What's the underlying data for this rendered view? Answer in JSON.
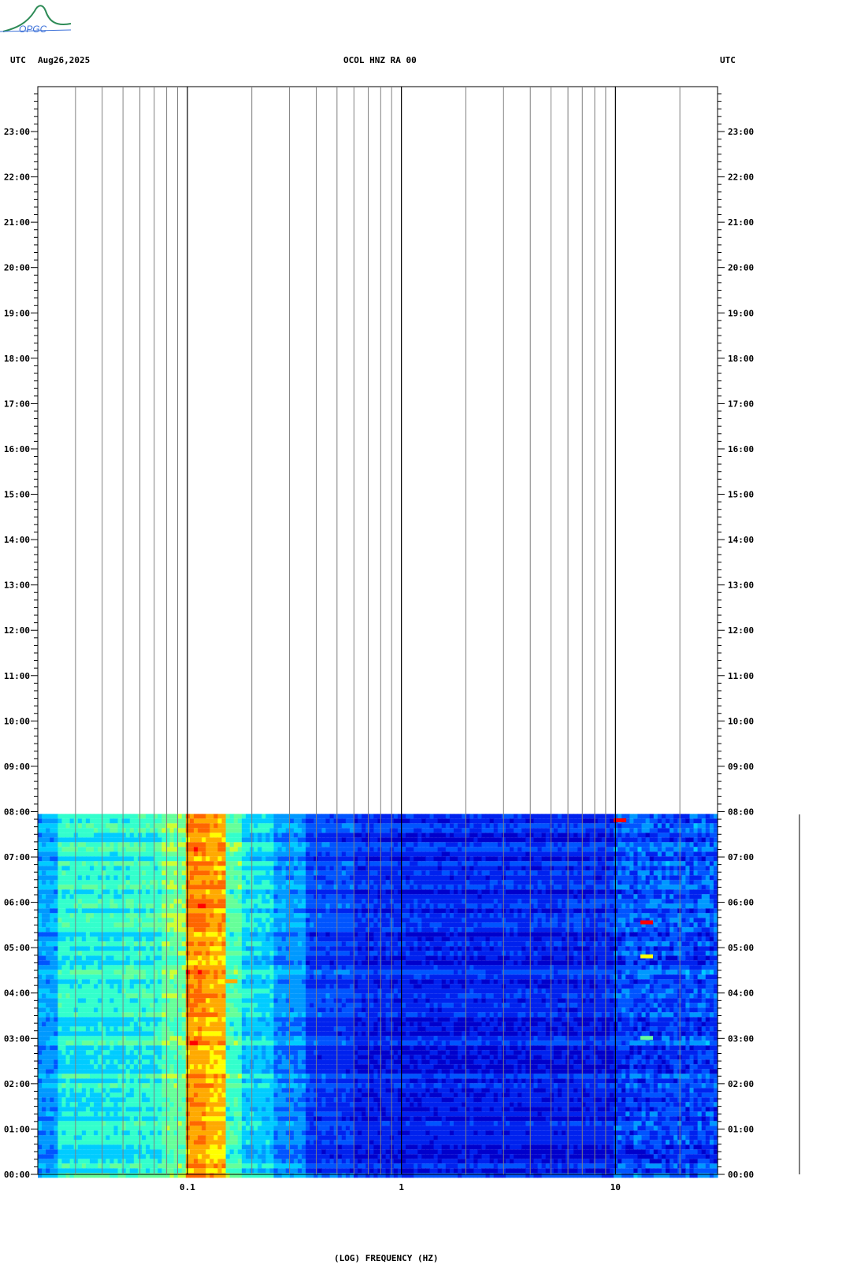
{
  "header": {
    "logo_text": "OPGC",
    "left_tz": "UTC",
    "date": "Aug26,2025",
    "station": "OCOL HNZ RA 00",
    "right_tz": "UTC"
  },
  "chart_data": {
    "type": "heatmap",
    "title": "OCOL HNZ RA 00",
    "xlabel": "(LOG) FREQUENCY (HZ)",
    "ylabel": "UTC",
    "x_scale": "log",
    "xlim": [
      0.02,
      30
    ],
    "x_ticks": [
      0.1,
      1,
      10
    ],
    "x_tick_labels": [
      "0.1",
      "1",
      "10"
    ],
    "x_minor_gridlines": [
      0.03,
      0.04,
      0.05,
      0.06,
      0.07,
      0.08,
      0.09,
      0.2,
      0.3,
      0.4,
      0.5,
      0.6,
      0.7,
      0.8,
      0.9,
      2,
      3,
      4,
      5,
      6,
      7,
      8,
      9,
      20
    ],
    "ylim_hours": [
      0,
      24
    ],
    "y_tick_labels": [
      "00:00",
      "01:00",
      "02:00",
      "03:00",
      "04:00",
      "05:00",
      "06:00",
      "07:00",
      "08:00",
      "09:00",
      "10:00",
      "11:00",
      "12:00",
      "13:00",
      "14:00",
      "15:00",
      "16:00",
      "17:00",
      "18:00",
      "19:00",
      "20:00",
      "21:00",
      "22:00",
      "23:00"
    ],
    "data_end_hour": 7.95,
    "colorscale": [
      "#0000cc",
      "#0022ee",
      "#0055ff",
      "#0099ff",
      "#00ccff",
      "#33ffcc",
      "#66ff99",
      "#ccff33",
      "#ffff00",
      "#ffaa00",
      "#ff6600",
      "#ff0000"
    ],
    "band_levels": [
      {
        "f_lo": 0.02,
        "f_hi": 0.025,
        "level": 3.2
      },
      {
        "f_lo": 0.025,
        "f_hi": 0.05,
        "level": 4.8
      },
      {
        "f_lo": 0.05,
        "f_hi": 0.075,
        "level": 5.0
      },
      {
        "f_lo": 0.075,
        "f_hi": 0.1,
        "level": 6.0
      },
      {
        "f_lo": 0.1,
        "f_hi": 0.12,
        "level": 9.5
      },
      {
        "f_lo": 0.12,
        "f_hi": 0.15,
        "level": 9.0
      },
      {
        "f_lo": 0.15,
        "f_hi": 0.18,
        "level": 5.5
      },
      {
        "f_lo": 0.18,
        "f_hi": 0.25,
        "level": 4.2
      },
      {
        "f_lo": 0.25,
        "f_hi": 0.35,
        "level": 3.0
      },
      {
        "f_lo": 0.35,
        "f_hi": 0.6,
        "level": 1.6
      },
      {
        "f_lo": 0.6,
        "f_hi": 10,
        "level": 1.0
      },
      {
        "f_lo": 10,
        "f_hi": 30,
        "level": 1.8
      }
    ],
    "events": [
      {
        "f": 10.5,
        "hour": 7.8,
        "level": 11
      },
      {
        "f": 14,
        "hour": 5.55,
        "level": 10.5
      },
      {
        "f": 14,
        "hour": 4.8,
        "level": 8
      },
      {
        "f": 14,
        "hour": 3.0,
        "level": 6
      },
      {
        "f": 0.16,
        "hour": 4.25,
        "level": 9
      }
    ]
  }
}
